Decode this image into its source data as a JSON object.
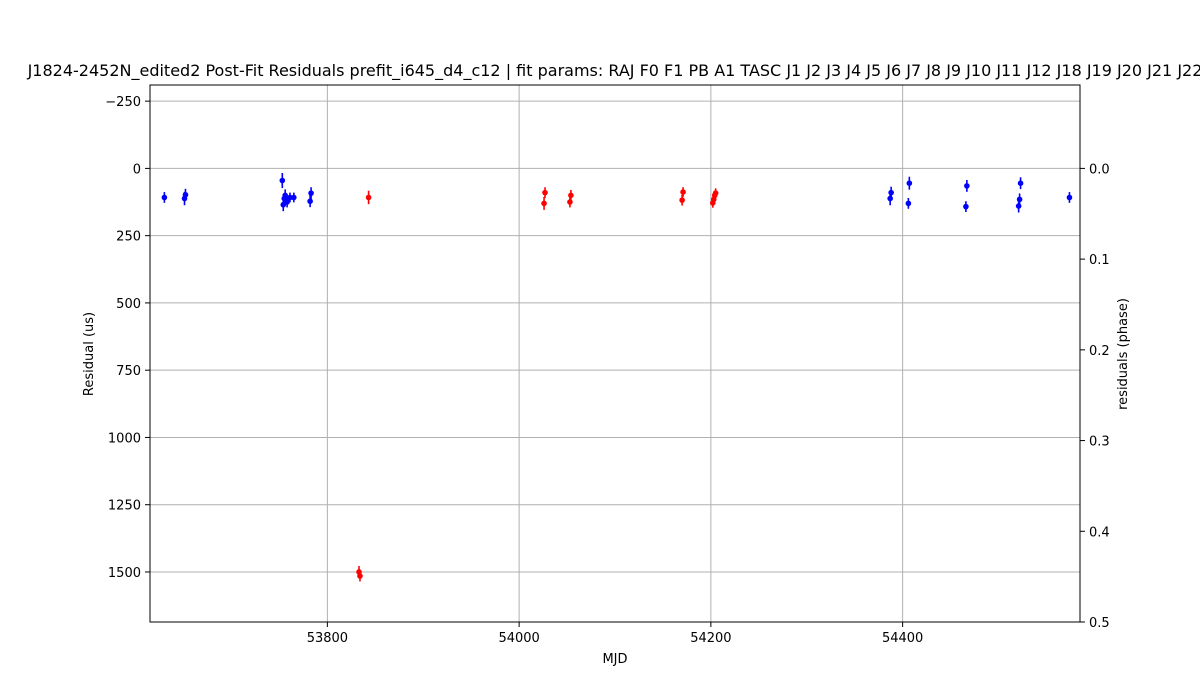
{
  "chart_data": {
    "type": "scatter",
    "title": "J1824-2452N_edited2 Post-Fit Residuals prefit_i645_d4_c12 | fit params: RAJ F0 F1 PB A1 TASC J1 J2 J3 J4 J5 J6 J7 J8 J9 J10 J11 J12 J18 J19 J20 J21 J22",
    "xlabel": "MJD",
    "ylabel": "Residual (us)",
    "y2label": "residuals (phase)",
    "xlim": [
      53615,
      54585
    ],
    "ylim": [
      1686,
      -310
    ],
    "y2lim": [
      0,
      0.5
    ],
    "inverted_y": true,
    "grid": true,
    "xticks": [
      53800,
      54000,
      54200,
      54400
    ],
    "yticks": [
      -250,
      0,
      250,
      500,
      750,
      1000,
      1250,
      1500
    ],
    "y2ticks": [
      "0.0",
      "0.1",
      "0.2",
      "0.3",
      "0.4",
      "0.5"
    ],
    "y2_us_per_phase": 3372,
    "series": [
      {
        "color": "#0000ff",
        "points": [
          {
            "x": 53630,
            "y": 108,
            "err": 20
          },
          {
            "x": 53651,
            "y": 112,
            "err": 25
          },
          {
            "x": 53652,
            "y": 98,
            "err": 22
          },
          {
            "x": 53753,
            "y": 45,
            "err": 28
          },
          {
            "x": 53754,
            "y": 135,
            "err": 24
          },
          {
            "x": 53755,
            "y": 112,
            "err": 20
          },
          {
            "x": 53756,
            "y": 100,
            "err": 22
          },
          {
            "x": 53758,
            "y": 125,
            "err": 20
          },
          {
            "x": 53761,
            "y": 108,
            "err": 18
          },
          {
            "x": 53765,
            "y": 108,
            "err": 18
          },
          {
            "x": 53782,
            "y": 122,
            "err": 22
          },
          {
            "x": 53783,
            "y": 92,
            "err": 22
          },
          {
            "x": 54387,
            "y": 112,
            "err": 25
          },
          {
            "x": 54388,
            "y": 90,
            "err": 22
          },
          {
            "x": 54406,
            "y": 130,
            "err": 20
          },
          {
            "x": 54407,
            "y": 55,
            "err": 24
          },
          {
            "x": 54466,
            "y": 142,
            "err": 20
          },
          {
            "x": 54467,
            "y": 65,
            "err": 22
          },
          {
            "x": 54521,
            "y": 140,
            "err": 24
          },
          {
            "x": 54522,
            "y": 115,
            "err": 22
          },
          {
            "x": 54523,
            "y": 55,
            "err": 22
          },
          {
            "x": 54574,
            "y": 108,
            "err": 20
          }
        ]
      },
      {
        "color": "#ff0000",
        "points": [
          {
            "x": 53833,
            "y": 1500,
            "err": 22
          },
          {
            "x": 53834,
            "y": 1515,
            "err": 20
          },
          {
            "x": 53843,
            "y": 108,
            "err": 25
          },
          {
            "x": 54026,
            "y": 130,
            "err": 24
          },
          {
            "x": 54027,
            "y": 90,
            "err": 20
          },
          {
            "x": 54053,
            "y": 125,
            "err": 20
          },
          {
            "x": 54054,
            "y": 100,
            "err": 20
          },
          {
            "x": 54170,
            "y": 118,
            "err": 20
          },
          {
            "x": 54171,
            "y": 88,
            "err": 18
          },
          {
            "x": 54202,
            "y": 128,
            "err": 18
          },
          {
            "x": 54203,
            "y": 115,
            "err": 18
          },
          {
            "x": 54204,
            "y": 100,
            "err": 18
          },
          {
            "x": 54205,
            "y": 92,
            "err": 18
          }
        ]
      }
    ]
  }
}
